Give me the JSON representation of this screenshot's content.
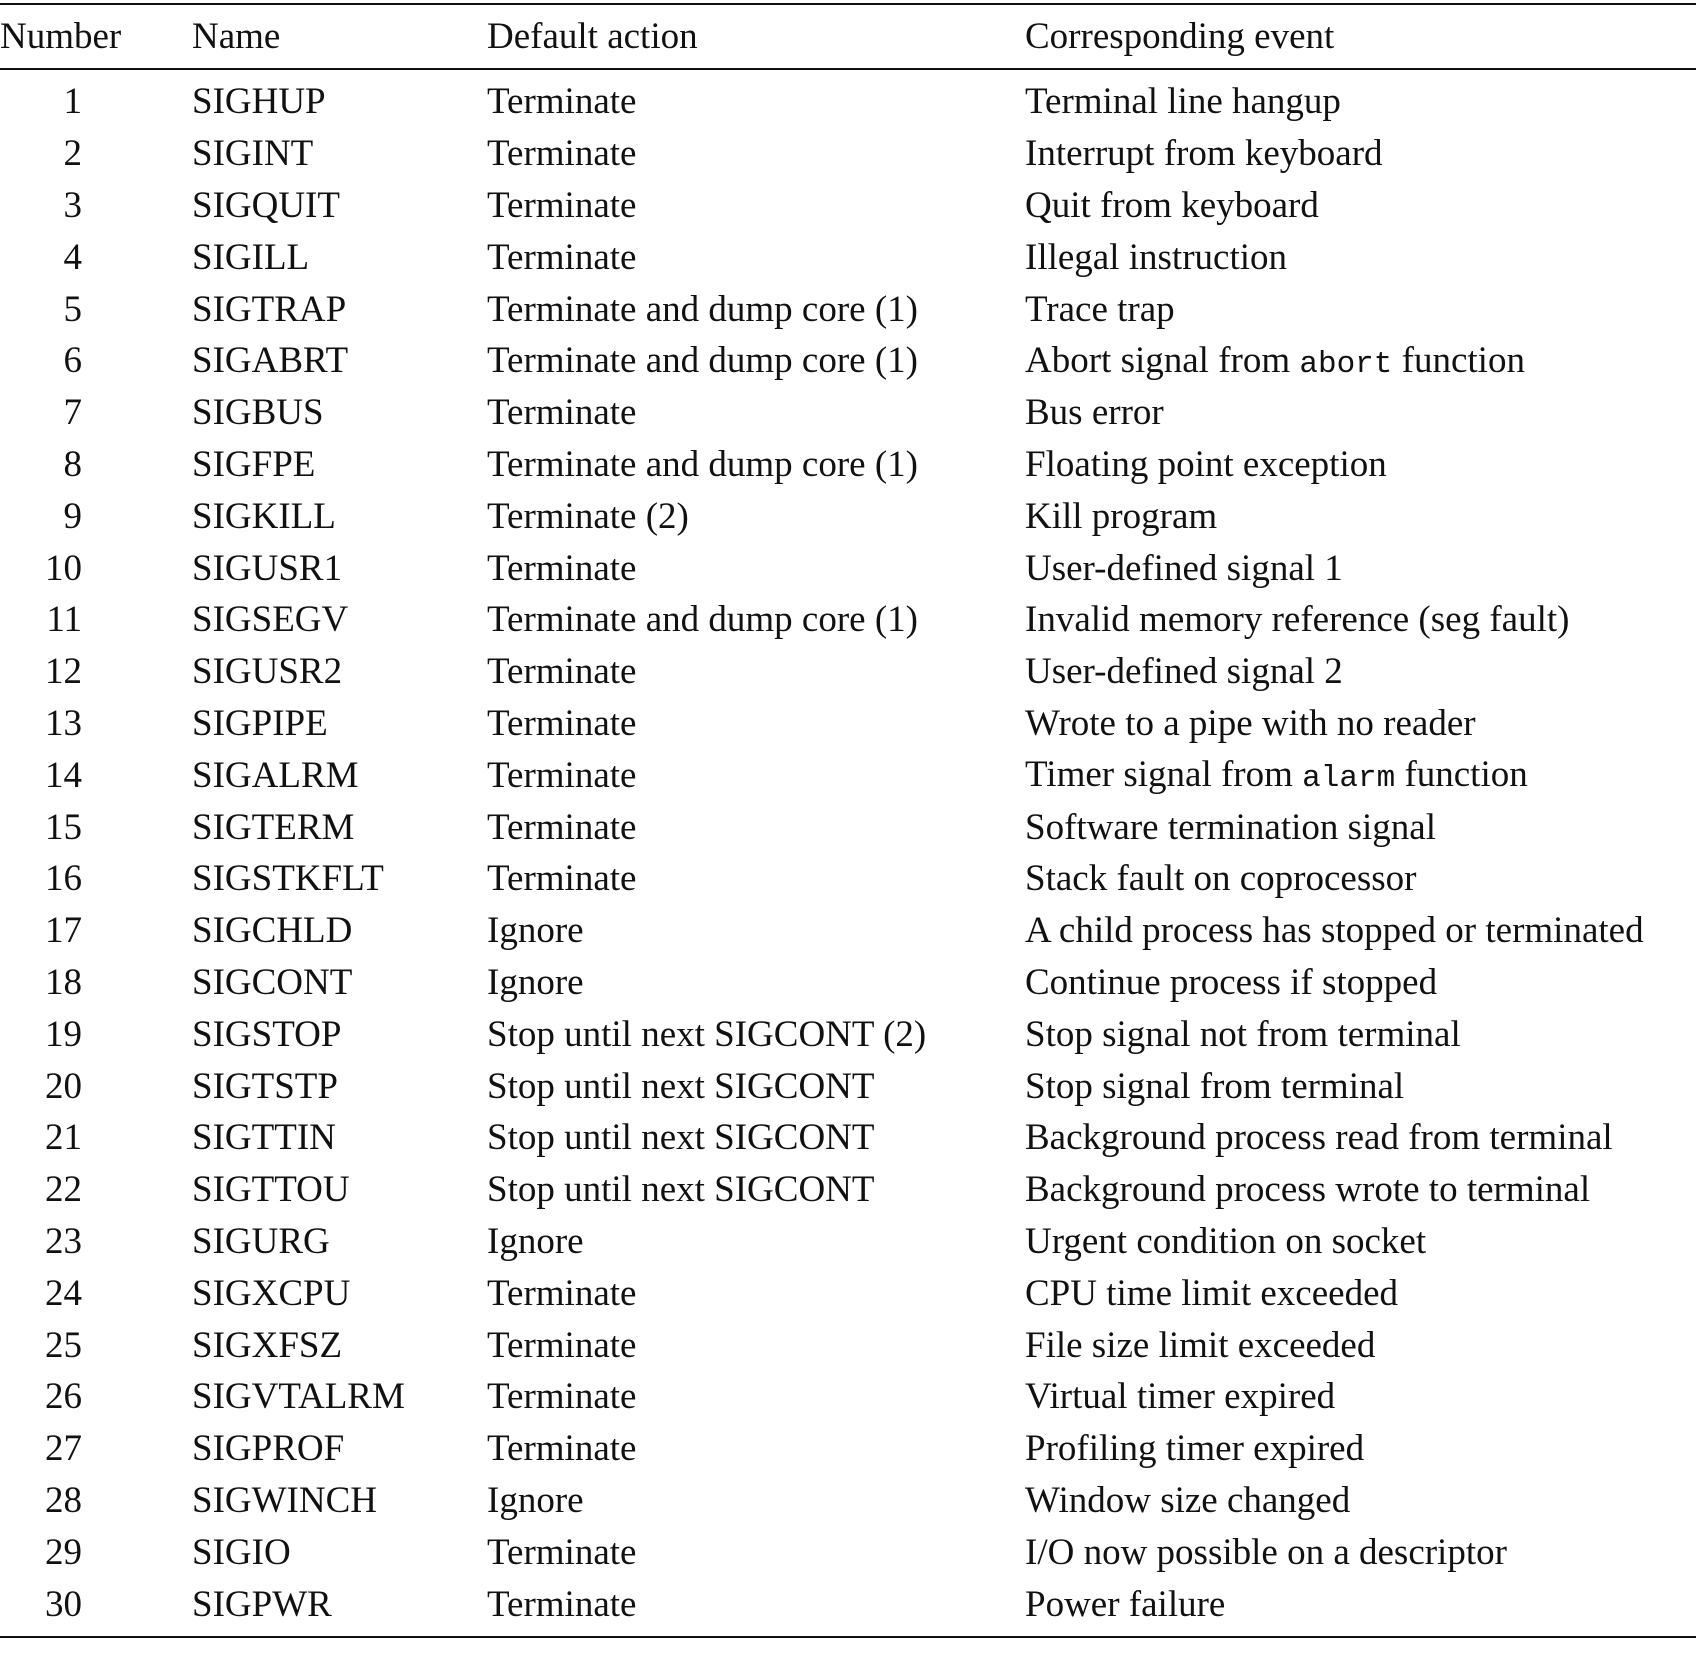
{
  "table": {
    "headers": {
      "number": "Number",
      "name": "Name",
      "action": "Default action",
      "event": "Corresponding event"
    },
    "rows": [
      {
        "number": "1",
        "name": "SIGHUP",
        "action": "Terminate",
        "event": [
          {
            "t": "Terminal line hangup"
          }
        ]
      },
      {
        "number": "2",
        "name": "SIGINT",
        "action": "Terminate",
        "event": [
          {
            "t": "Interrupt from keyboard"
          }
        ]
      },
      {
        "number": "3",
        "name": "SIGQUIT",
        "action": "Terminate",
        "event": [
          {
            "t": "Quit from keyboard"
          }
        ]
      },
      {
        "number": "4",
        "name": "SIGILL",
        "action": "Terminate",
        "event": [
          {
            "t": "Illegal instruction"
          }
        ]
      },
      {
        "number": "5",
        "name": "SIGTRAP",
        "action": "Terminate and dump core (1)",
        "event": [
          {
            "t": "Trace trap"
          }
        ]
      },
      {
        "number": "6",
        "name": "SIGABRT",
        "action": "Terminate and dump core (1)",
        "event": [
          {
            "t": "Abort signal from "
          },
          {
            "t": "abort",
            "code": true
          },
          {
            "t": " function"
          }
        ]
      },
      {
        "number": "7",
        "name": "SIGBUS",
        "action": "Terminate",
        "event": [
          {
            "t": "Bus error"
          }
        ]
      },
      {
        "number": "8",
        "name": "SIGFPE",
        "action": "Terminate and dump core (1)",
        "event": [
          {
            "t": "Floating point exception"
          }
        ]
      },
      {
        "number": "9",
        "name": "SIGKILL",
        "action": "Terminate (2)",
        "event": [
          {
            "t": "Kill program"
          }
        ]
      },
      {
        "number": "10",
        "name": "SIGUSR1",
        "action": "Terminate",
        "event": [
          {
            "t": "User-defined signal 1"
          }
        ]
      },
      {
        "number": "11",
        "name": "SIGSEGV",
        "action": "Terminate and dump core (1)",
        "event": [
          {
            "t": "Invalid memory reference (seg fault)"
          }
        ]
      },
      {
        "number": "12",
        "name": "SIGUSR2",
        "action": "Terminate",
        "event": [
          {
            "t": "User-defined signal 2"
          }
        ]
      },
      {
        "number": "13",
        "name": "SIGPIPE",
        "action": "Terminate",
        "event": [
          {
            "t": "Wrote to a pipe with no reader"
          }
        ]
      },
      {
        "number": "14",
        "name": "SIGALRM",
        "action": "Terminate",
        "event": [
          {
            "t": "Timer signal from "
          },
          {
            "t": "alarm",
            "code": true
          },
          {
            "t": " function"
          }
        ]
      },
      {
        "number": "15",
        "name": "SIGTERM",
        "action": "Terminate",
        "event": [
          {
            "t": "Software termination signal"
          }
        ]
      },
      {
        "number": "16",
        "name": "SIGSTKFLT",
        "action": "Terminate",
        "event": [
          {
            "t": "Stack fault on coprocessor"
          }
        ]
      },
      {
        "number": "17",
        "name": "SIGCHLD",
        "action": "Ignore",
        "event": [
          {
            "t": "A child process has stopped or terminated"
          }
        ]
      },
      {
        "number": "18",
        "name": "SIGCONT",
        "action": "Ignore",
        "event": [
          {
            "t": "Continue process if stopped"
          }
        ]
      },
      {
        "number": "19",
        "name": "SIGSTOP",
        "action": "Stop until next SIGCONT (2)",
        "event": [
          {
            "t": "Stop signal not from terminal"
          }
        ]
      },
      {
        "number": "20",
        "name": "SIGTSTP",
        "action": "Stop until next SIGCONT",
        "event": [
          {
            "t": "Stop signal from terminal"
          }
        ]
      },
      {
        "number": "21",
        "name": "SIGTTIN",
        "action": "Stop until next SIGCONT",
        "event": [
          {
            "t": "Background process read from terminal"
          }
        ]
      },
      {
        "number": "22",
        "name": "SIGTTOU",
        "action": "Stop until next SIGCONT",
        "event": [
          {
            "t": "Background process wrote to terminal"
          }
        ]
      },
      {
        "number": "23",
        "name": "SIGURG",
        "action": "Ignore",
        "event": [
          {
            "t": "Urgent condition on socket"
          }
        ]
      },
      {
        "number": "24",
        "name": "SIGXCPU",
        "action": "Terminate",
        "event": [
          {
            "t": "CPU time limit exceeded"
          }
        ]
      },
      {
        "number": "25",
        "name": "SIGXFSZ",
        "action": "Terminate",
        "event": [
          {
            "t": "File size limit exceeded"
          }
        ]
      },
      {
        "number": "26",
        "name": "SIGVTALRM",
        "action": "Terminate",
        "event": [
          {
            "t": "Virtual timer expired"
          }
        ]
      },
      {
        "number": "27",
        "name": "SIGPROF",
        "action": "Terminate",
        "event": [
          {
            "t": "Profiling timer expired"
          }
        ]
      },
      {
        "number": "28",
        "name": "SIGWINCH",
        "action": "Ignore",
        "event": [
          {
            "t": "Window size changed"
          }
        ]
      },
      {
        "number": "29",
        "name": "SIGIO",
        "action": "Terminate",
        "event": [
          {
            "t": "I/O now possible on a descriptor"
          }
        ]
      },
      {
        "number": "30",
        "name": "SIGPWR",
        "action": "Terminate",
        "event": [
          {
            "t": "Power failure"
          }
        ]
      }
    ]
  }
}
